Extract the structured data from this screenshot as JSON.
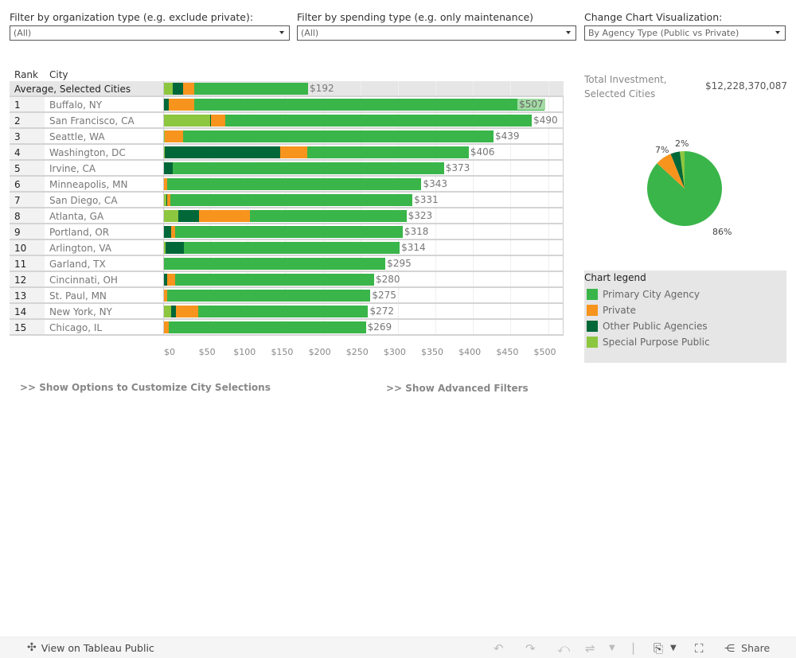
{
  "filters": [
    {
      "label": "Filter by organization type (e.g. exclude private):",
      "value": "(All)"
    },
    {
      "label": "Filter by spending type (e.g. only maintenance)",
      "value": "(All)"
    },
    {
      "label": "Change Chart Visualization:",
      "value": "By Agency Type (Public vs Private)"
    }
  ],
  "table": {
    "rank_header": "Rank",
    "city_header": "City",
    "average_label": "Average, Selected Cities"
  },
  "colors": {
    "primary": "#3ab54a",
    "private": "#f7941d",
    "other_public": "#006838",
    "special_purpose": "#8dc63f"
  },
  "chart_data": {
    "type": "bar",
    "orientation": "horizontal",
    "stacked": true,
    "xlabel": "",
    "ylabel": "City",
    "xlim": [
      0,
      530
    ],
    "x_ticks": [
      "$0",
      "$50",
      "$100",
      "$150",
      "$200",
      "$250",
      "$300",
      "$350",
      "$400",
      "$450",
      "$500"
    ],
    "x_tick_values": [
      0,
      50,
      100,
      150,
      200,
      250,
      300,
      350,
      400,
      450,
      500
    ],
    "series_order": [
      "special_purpose",
      "other_public",
      "private",
      "primary"
    ],
    "series": [
      {
        "key": "primary",
        "name": "Primary City Agency"
      },
      {
        "key": "private",
        "name": "Private"
      },
      {
        "key": "other_public",
        "name": "Other Public Agencies"
      },
      {
        "key": "special_purpose",
        "name": "Special Purpose Public"
      }
    ],
    "average": {
      "label": "$192",
      "total": 192,
      "special_purpose": 12,
      "other_public": 13,
      "private": 15,
      "primary": 152
    },
    "rows": [
      {
        "rank": "1",
        "city": "Buffalo, NY",
        "label": "$507",
        "total": 507,
        "special_purpose": 0,
        "other_public": 6,
        "private": 34,
        "primary": 467,
        "highlight": true
      },
      {
        "rank": "2",
        "city": "San Francisco, CA",
        "label": "$490",
        "total": 490,
        "special_purpose": 61,
        "other_public": 2,
        "private": 19,
        "primary": 408
      },
      {
        "rank": "3",
        "city": "Seattle, WA",
        "label": "$439",
        "total": 439,
        "special_purpose": 1,
        "other_public": 0,
        "private": 24,
        "primary": 414
      },
      {
        "rank": "4",
        "city": "Washington, DC",
        "label": "$406",
        "total": 406,
        "special_purpose": 1,
        "other_public": 154,
        "private": 36,
        "primary": 215
      },
      {
        "rank": "5",
        "city": "Irvine, CA",
        "label": "$373",
        "total": 373,
        "special_purpose": 0,
        "other_public": 12,
        "private": 0,
        "primary": 361
      },
      {
        "rank": "6",
        "city": "Minneapolis, MN",
        "label": "$343",
        "total": 343,
        "special_purpose": 0,
        "other_public": 0,
        "private": 4,
        "primary": 339
      },
      {
        "rank": "7",
        "city": "San Diego, CA",
        "label": "$331",
        "total": 331,
        "special_purpose": 3,
        "other_public": 1,
        "private": 5,
        "primary": 322
      },
      {
        "rank": "8",
        "city": "Atlanta, GA",
        "label": "$323",
        "total": 323,
        "special_purpose": 19,
        "other_public": 28,
        "private": 68,
        "primary": 208
      },
      {
        "rank": "9",
        "city": "Portland, OR",
        "label": "$318",
        "total": 318,
        "special_purpose": 0,
        "other_public": 10,
        "private": 5,
        "primary": 303
      },
      {
        "rank": "10",
        "city": "Arlington, VA",
        "label": "$314",
        "total": 314,
        "special_purpose": 2,
        "other_public": 24,
        "private": 0,
        "primary": 288
      },
      {
        "rank": "11",
        "city": "Garland, TX",
        "label": "$295",
        "total": 295,
        "special_purpose": 0,
        "other_public": 0,
        "private": 0,
        "primary": 295
      },
      {
        "rank": "12",
        "city": "Cincinnati, OH",
        "label": "$280",
        "total": 280,
        "special_purpose": 0,
        "other_public": 4,
        "private": 11,
        "primary": 265
      },
      {
        "rank": "13",
        "city": "St. Paul, MN",
        "label": "$275",
        "total": 275,
        "special_purpose": 0,
        "other_public": 0,
        "private": 4,
        "primary": 271
      },
      {
        "rank": "14",
        "city": "New York, NY",
        "label": "$272",
        "total": 272,
        "special_purpose": 10,
        "other_public": 6,
        "private": 30,
        "primary": 226
      },
      {
        "rank": "15",
        "city": "Chicago, IL",
        "label": "$269",
        "total": 269,
        "special_purpose": 0,
        "other_public": 0,
        "private": 6,
        "primary": 263
      }
    ],
    "pie": {
      "type": "pie",
      "slices": [
        {
          "key": "primary",
          "name": "Primary City Agency",
          "value": 86,
          "label": "86%"
        },
        {
          "key": "private",
          "name": "Private",
          "value": 7,
          "label": "7%"
        },
        {
          "key": "other_public",
          "name": "Other Public Agencies",
          "value": 4,
          "label": ""
        },
        {
          "key": "special_purpose",
          "name": "Special Purpose Public",
          "value": 2,
          "label": "2%"
        }
      ]
    }
  },
  "summary": {
    "total_label": "Total Investment, Selected Cities",
    "total_value": "$12,228,370,087"
  },
  "legend": {
    "title": "Chart legend",
    "items": [
      {
        "key": "primary",
        "label": "Primary City Agency"
      },
      {
        "key": "private",
        "label": "Private"
      },
      {
        "key": "other_public",
        "label": "Other Public Agencies"
      },
      {
        "key": "special_purpose",
        "label": "Special Purpose Public"
      }
    ]
  },
  "links": {
    "customize": ">> Show Options to Customize City Selections",
    "advanced": ">> Show Advanced Filters"
  },
  "footer": {
    "tableau_link": "View on Tableau Public",
    "share_label": "Share",
    "icons": [
      "undo-icon",
      "redo-icon",
      "revert-icon",
      "refresh-icon",
      "download-icon",
      "fullscreen-icon",
      "share-icon"
    ]
  }
}
